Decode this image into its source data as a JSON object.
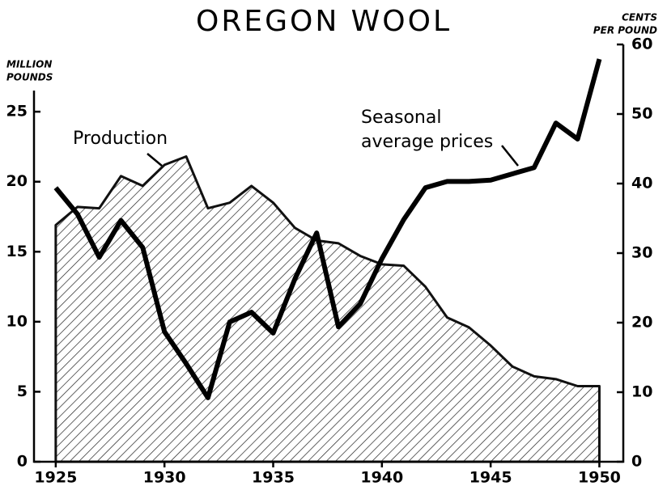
{
  "chart_data": {
    "type": "line",
    "title": "OREGON WOOL",
    "y_label": [
      "MILLION",
      "POUNDS"
    ],
    "y2_label": [
      "CENTS",
      "PER POUND"
    ],
    "x": [
      1925,
      1926,
      1927,
      1928,
      1929,
      1930,
      1931,
      1932,
      1933,
      1934,
      1935,
      1936,
      1937,
      1938,
      1939,
      1940,
      1941,
      1942,
      1943,
      1944,
      1945,
      1946,
      1947,
      1948,
      1949,
      1950
    ],
    "series": [
      {
        "name": "Production",
        "color": "#111111",
        "fill": "hatch",
        "values": [
          16.9,
          18.2,
          18.1,
          20.4,
          19.7,
          21.2,
          21.8,
          18.1,
          18.5,
          19.7,
          18.5,
          16.7,
          15.8,
          15.6,
          14.7,
          14.1,
          14.0,
          12.5,
          10.3,
          9.6,
          8.3,
          6.8,
          6.1,
          5.9,
          5.4,
          5.4
        ]
      },
      {
        "name": [
          "Seasonal",
          "average prices"
        ],
        "color": "#000000",
        "axis": "y2",
        "values": [
          39.4,
          35.6,
          29.4,
          34.7,
          30.8,
          18.7,
          14.1,
          9.2,
          20.1,
          21.5,
          18.5,
          26.3,
          32.9,
          19.4,
          22.7,
          29.2,
          34.8,
          39.4,
          40.3,
          40.3,
          40.5,
          41.4,
          42.3,
          48.7,
          46.4,
          57.9
        ]
      }
    ],
    "xlim": [
      1924,
      1951.1
    ],
    "xticks": [
      1925,
      1930,
      1935,
      1940,
      1945,
      1950
    ],
    "ylim": [
      0,
      29.8
    ],
    "yticks": [
      0,
      5,
      10,
      15,
      20,
      25
    ],
    "y2lim": [
      0,
      60
    ],
    "y2ticks": [
      0,
      10,
      20,
      30,
      40,
      50,
      60
    ]
  }
}
